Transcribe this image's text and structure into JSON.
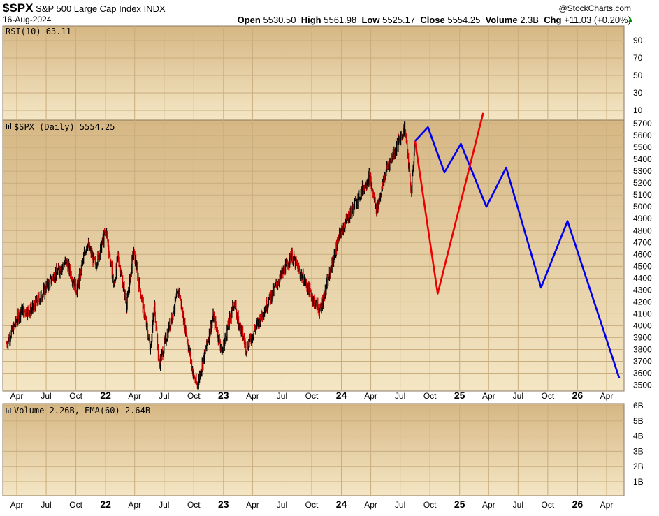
{
  "header": {
    "symbol": "$SPX",
    "name": "S&P 500 Large Cap Index",
    "exchange": "INDX",
    "date": "16-Aug-2024",
    "watermark": "@StockCharts.com",
    "stats": {
      "open_label": "Open",
      "open": "5530.50",
      "high_label": "High",
      "high": "5561.98",
      "low_label": "Low",
      "low": "5525.17",
      "close_label": "Close",
      "close": "5554.25",
      "volume_label": "Volume",
      "volume": "2.3B",
      "chg_label": "Chg",
      "chg": "+11.03 (+0.20%)"
    }
  },
  "panels": {
    "rsi": {
      "label": "RSI(10) 63.11",
      "ticks": [
        "90",
        "70",
        "50",
        "30",
        "10"
      ]
    },
    "price": {
      "label": "$SPX (Daily) 5554.25"
    },
    "volume": {
      "label": "Volume 2.26B, EMA(60) 2.64B",
      "ticks": [
        "6B",
        "5B",
        "4B",
        "3B",
        "2B",
        "1B"
      ]
    }
  },
  "colors": {
    "panel_bg_top": "#d6b784",
    "panel_bg_bottom": "#f4e6c4",
    "grid": "#c9ad7e",
    "up_bar": "#000000",
    "down_bar": "#cc0000",
    "projection_blue": "#0000ee",
    "projection_red": "#ee0000"
  },
  "chart_data": {
    "type": "line",
    "x_axis": {
      "ticks": [
        {
          "date": "2021-04",
          "label": "Apr"
        },
        {
          "date": "2021-07",
          "label": "Jul"
        },
        {
          "date": "2021-10",
          "label": "Oct"
        },
        {
          "date": "2022-01",
          "label": "22"
        },
        {
          "date": "2022-04",
          "label": "Apr"
        },
        {
          "date": "2022-07",
          "label": "Jul"
        },
        {
          "date": "2022-10",
          "label": "Oct"
        },
        {
          "date": "2023-01",
          "label": "23"
        },
        {
          "date": "2023-04",
          "label": "Apr"
        },
        {
          "date": "2023-07",
          "label": "Jul"
        },
        {
          "date": "2023-10",
          "label": "Oct"
        },
        {
          "date": "2024-01",
          "label": "24"
        },
        {
          "date": "2024-04",
          "label": "Apr"
        },
        {
          "date": "2024-07",
          "label": "Jul"
        },
        {
          "date": "2024-10",
          "label": "Oct"
        },
        {
          "date": "2025-01",
          "label": "25"
        },
        {
          "date": "2025-04",
          "label": "Apr"
        },
        {
          "date": "2025-07",
          "label": "Jul"
        },
        {
          "date": "2025-10",
          "label": "Oct"
        },
        {
          "date": "2026-01",
          "label": "26"
        },
        {
          "date": "2026-04",
          "label": "Apr"
        }
      ]
    },
    "y_axis": {
      "ticks": [
        "5700",
        "5600",
        "5500",
        "5400",
        "5300",
        "5200",
        "5100",
        "5000",
        "4900",
        "4800",
        "4700",
        "4600",
        "4500",
        "4400",
        "4300",
        "4200",
        "4100",
        "4000",
        "3900",
        "3800",
        "3700",
        "3600",
        "3500"
      ],
      "ylim": [
        3450,
        5730
      ]
    },
    "series": [
      {
        "role": "price",
        "points": [
          [
            "2021-03-01",
            3850
          ],
          [
            "2021-04-15",
            4130
          ],
          [
            "2021-05-15",
            4120
          ],
          [
            "2021-06-15",
            4250
          ],
          [
            "2021-07-25",
            4420
          ],
          [
            "2021-09-02",
            4540
          ],
          [
            "2021-10-04",
            4300
          ],
          [
            "2021-11-05",
            4700
          ],
          [
            "2021-12-01",
            4510
          ],
          [
            "2022-01-03",
            4800
          ],
          [
            "2022-01-27",
            4330
          ],
          [
            "2022-02-09",
            4580
          ],
          [
            "2022-03-08",
            4170
          ],
          [
            "2022-03-29",
            4630
          ],
          [
            "2022-04-26",
            4180
          ],
          [
            "2022-05-20",
            3810
          ],
          [
            "2022-06-02",
            4170
          ],
          [
            "2022-06-16",
            3670
          ],
          [
            "2022-08-16",
            4300
          ],
          [
            "2022-09-30",
            3590
          ],
          [
            "2022-10-12",
            3490
          ],
          [
            "2022-12-01",
            4080
          ],
          [
            "2022-12-28",
            3780
          ],
          [
            "2023-02-02",
            4190
          ],
          [
            "2023-03-13",
            3810
          ],
          [
            "2023-05-19",
            4200
          ],
          [
            "2023-07-31",
            4590
          ],
          [
            "2023-10-27",
            4120
          ],
          [
            "2023-12-29",
            4780
          ],
          [
            "2024-03-28",
            5260
          ],
          [
            "2024-04-19",
            4970
          ],
          [
            "2024-05-21",
            5320
          ],
          [
            "2024-07-16",
            5670
          ],
          [
            "2024-08-05",
            5120
          ],
          [
            "2024-08-16",
            5554
          ]
        ]
      },
      {
        "role": "projection",
        "color": "blue",
        "points": [
          [
            "2024-08-16",
            5554
          ],
          [
            "2024-09-25",
            5670
          ],
          [
            "2024-11-15",
            5290
          ],
          [
            "2025-01-05",
            5530
          ],
          [
            "2025-03-25",
            5000
          ],
          [
            "2025-05-25",
            5330
          ],
          [
            "2025-09-10",
            4320
          ],
          [
            "2025-12-01",
            4880
          ],
          [
            "2026-05-10",
            3560
          ]
        ]
      },
      {
        "role": "projection",
        "color": "red",
        "points": [
          [
            "2024-08-16",
            5554
          ],
          [
            "2024-10-25",
            4270
          ],
          [
            "2025-03-15",
            5790
          ]
        ]
      }
    ]
  }
}
